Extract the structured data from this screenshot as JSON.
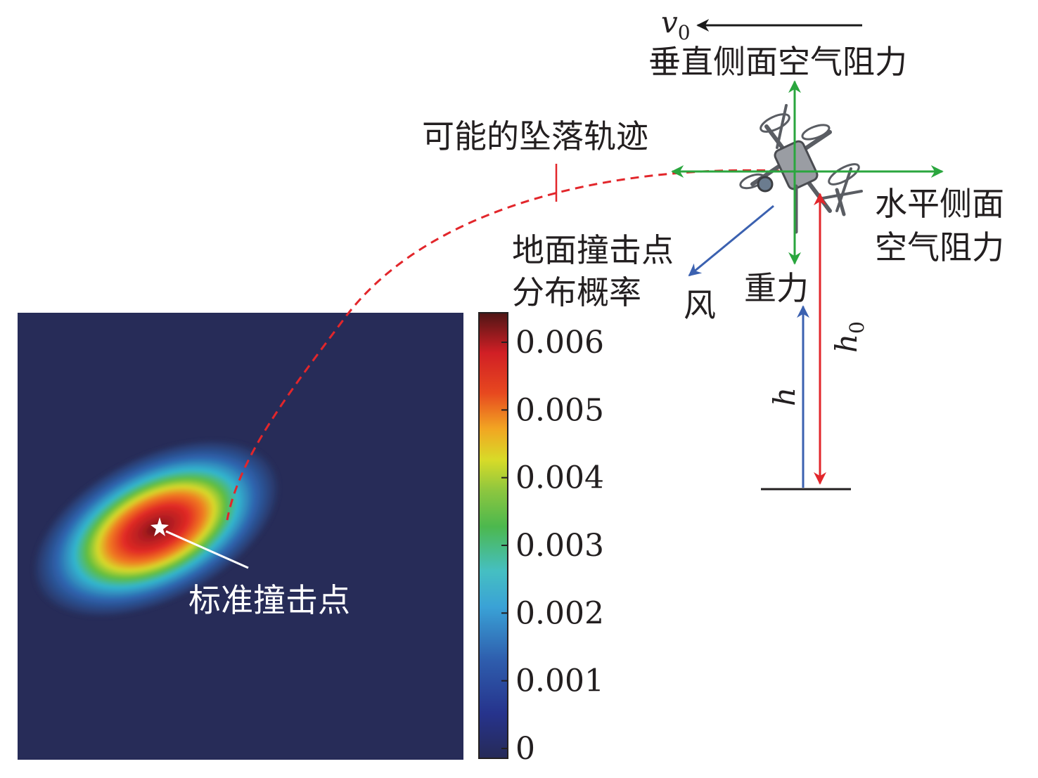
{
  "labels": {
    "v0": "v",
    "v0_sub": "0",
    "vertical_drag": "垂直侧面空气阻力",
    "trajectory": "可能的坠落轨迹",
    "horizontal_drag_line1": "水平侧面",
    "horizontal_drag_line2": "空气阻力",
    "impact_prob_line1": "地面撞击点",
    "impact_prob_line2": "分布概率",
    "wind": "风",
    "gravity": "重力",
    "h": "h",
    "h0": "h",
    "h0_sub": "0",
    "standard_impact": "标准撞击点"
  },
  "colorbar": {
    "ticks": [
      "0.006",
      "0.005",
      "0.004",
      "0.003",
      "0.002",
      "0.001",
      "0"
    ]
  },
  "colors": {
    "heatmap_background": "#272c58",
    "trajectory": "#e2262b",
    "force_arrows": "#2aa63e",
    "wind_arrow": "#3b61b0",
    "height_red": "#e2262b",
    "height_blue": "#3b61b0",
    "v0_arrow": "#1a1a1a"
  },
  "icons": {
    "drone": "quadcopter-drone-icon",
    "star": "star-icon"
  }
}
